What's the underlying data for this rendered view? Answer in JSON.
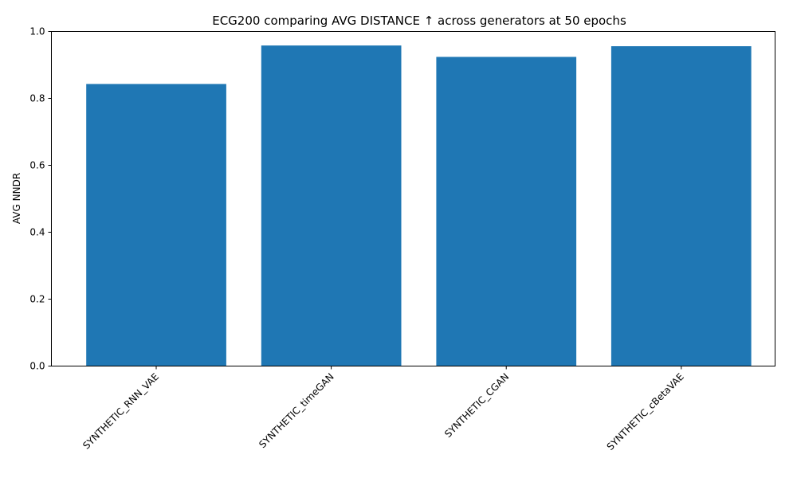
{
  "chart_data": {
    "type": "bar",
    "title": "ECG200 comparing AVG DISTANCE ↑  across generators at 50 epochs",
    "xlabel": "",
    "ylabel": "AVG NNDR",
    "categories": [
      "SYNTHETIC_RNN_VAE",
      "SYNTHETIC_timeGAN",
      "SYNTHETIC_CGAN",
      "SYNTHETIC_cBetaVAE"
    ],
    "values": [
      0.843,
      0.958,
      0.924,
      0.956
    ],
    "ylim": [
      0.0,
      1.0
    ],
    "yticks": [
      "0.0",
      "0.2",
      "0.4",
      "0.6",
      "0.8",
      "1.0"
    ],
    "bar_color": "#1f77b4",
    "grid": false,
    "legend": "none"
  }
}
